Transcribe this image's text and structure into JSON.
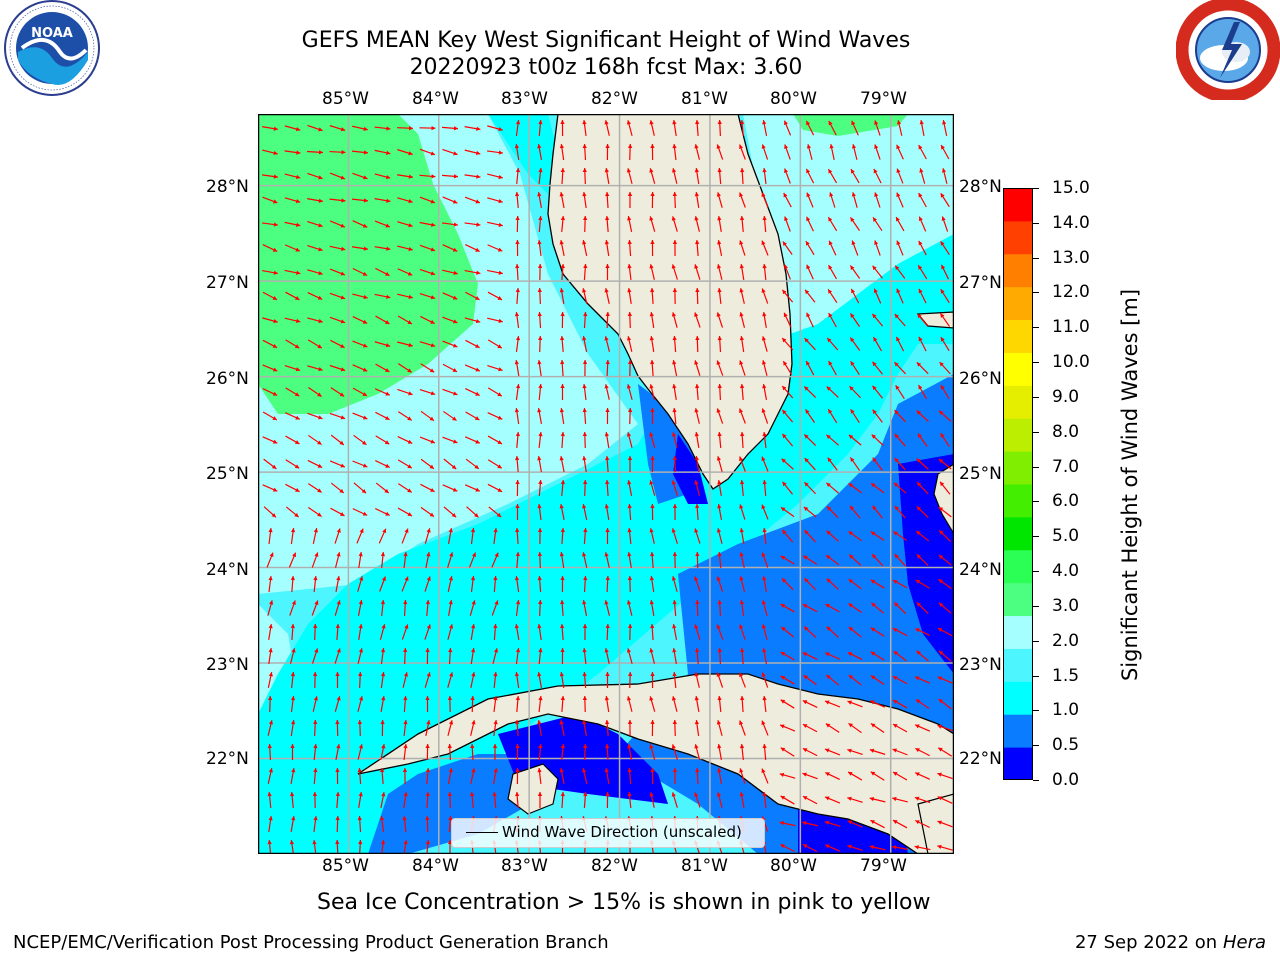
{
  "header": {
    "title_line1": "GEFS MEAN Key West Significant Height of Wind Waves",
    "title_line2": "20220923 t00z 168h fcst   Max: 3.60"
  },
  "logos": {
    "left": {
      "name": "NOAA",
      "ring_text": "NATIONAL OCEANIC AND ATMOSPHERIC ADMINISTRATION · U.S. DEPARTMENT OF COMMERCE"
    },
    "right": {
      "name": "NATIONAL WEATHER SERVICE"
    }
  },
  "map": {
    "lon_labels": [
      "85°W",
      "84°W",
      "83°W",
      "82°W",
      "81°W",
      "80°W",
      "79°W"
    ],
    "lat_labels": [
      "28°N",
      "27°N",
      "26°N",
      "25°N",
      "24°N",
      "23°N",
      "22°N"
    ],
    "lon_range": [
      -86.0,
      -78.3
    ],
    "lat_range": [
      21.0,
      28.75
    ],
    "legend_label": "Wind Wave Direction (unscaled)",
    "colors": {
      "land": "#eeecdc",
      "arrow": "#ff0000",
      "grid": "#b0b0b0",
      "coast": "#000000"
    }
  },
  "colorbar": {
    "label": "Significant Height of Wind Waves [m]",
    "ticks": [
      "15.0",
      "14.0",
      "13.0",
      "12.0",
      "11.0",
      "10.0",
      "9.0",
      "8.0",
      "7.0",
      "6.0",
      "5.0",
      "4.0",
      "3.0",
      "2.0",
      "1.5",
      "1.0",
      "0.5",
      "0.0"
    ],
    "colors": [
      "#0000ff",
      "#0a7cff",
      "#00ffff",
      "#4df5ff",
      "#a6ffff",
      "#4dff80",
      "#2bff55",
      "#00e600",
      "#44ee00",
      "#80ee00",
      "#bbee00",
      "#e6ee00",
      "#ffff00",
      "#ffd700",
      "#ffaa00",
      "#ff8000",
      "#ff4000",
      "#ff0000"
    ]
  },
  "notes": {
    "sea_ice": "Sea Ice Concentration > 15% is shown in pink to yellow",
    "footer_left": "NCEP/EMC/Verification Post Processing Product Generation Branch",
    "footer_right_date": "27 Sep 2022 on",
    "footer_right_host": "Hera"
  }
}
